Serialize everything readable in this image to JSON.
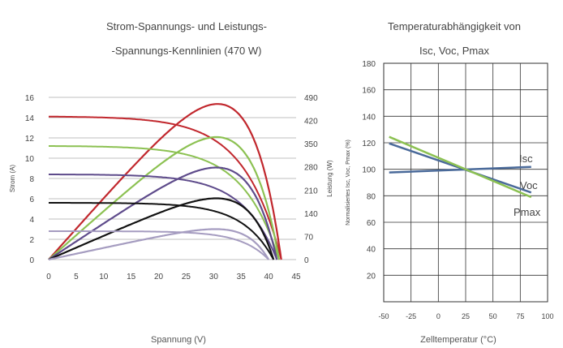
{
  "chart_data": [
    {
      "type": "line",
      "title_line1": "Strom-Spannungs- und Leistungs-",
      "title_line2": "-Spannungs-Kennlinien (470 W)",
      "xlabel": "Spannung (V)",
      "ylabel_left": "Strom (A)",
      "ylabel_right": "Leistung (W)",
      "xlim": [
        0,
        45
      ],
      "ylim_left": [
        0,
        16
      ],
      "ylim_right": [
        0,
        490
      ],
      "x_ticks": [
        "0",
        "5",
        "10",
        "15",
        "20",
        "25",
        "30",
        "35",
        "40",
        "45"
      ],
      "y_left_ticks": [
        "0",
        "2",
        "4",
        "6",
        "8",
        "10",
        "12",
        "14",
        "16"
      ],
      "y_right_ticks": [
        "0",
        "70",
        "140",
        "210",
        "280",
        "350",
        "420",
        "490"
      ],
      "grid": true,
      "series": [
        {
          "color": "#c1272d",
          "isc": 14.1,
          "voc": 42.3,
          "vmp": 35.2,
          "pmax": 470
        },
        {
          "color": "#8cc152",
          "isc": 11.2,
          "voc": 41.9,
          "vmp": 35.0,
          "pmax": 370
        },
        {
          "color": "#5e4b8b",
          "isc": 8.4,
          "voc": 41.5,
          "vmp": 35.0,
          "pmax": 278
        },
        {
          "color": "#111111",
          "isc": 5.6,
          "voc": 40.9,
          "vmp": 35.0,
          "pmax": 185
        },
        {
          "color": "#a59cc0",
          "isc": 2.8,
          "voc": 40.0,
          "vmp": 34.8,
          "pmax": 92
        }
      ]
    },
    {
      "type": "line",
      "title_line1": "Temperaturabhängigkeit von",
      "title_line2": "Isc, Voc, Pmax",
      "xlabel": "Zelltemperatur (°C)",
      "ylabel": "Normalisiertes Isc, Voc, Pmax (%)",
      "xlim": [
        -50,
        100
      ],
      "ylim": [
        0,
        180
      ],
      "x_ticks": [
        "-50",
        "-25",
        "0",
        "25",
        "50",
        "75",
        "100"
      ],
      "y_ticks": [
        "20",
        "40",
        "60",
        "80",
        "100",
        "120",
        "140",
        "160",
        "180"
      ],
      "grid": true,
      "series": [
        {
          "name": "Isc",
          "color": "#4a6a9a",
          "x": [
            -45,
            85
          ],
          "y": [
            97.6,
            101.8
          ]
        },
        {
          "name": "Voc",
          "color": "#4a6a9a",
          "x": [
            -45,
            85
          ],
          "y": [
            119.5,
            82.5
          ]
        },
        {
          "name": "Pmax",
          "color": "#8cc152",
          "x": [
            -45,
            85
          ],
          "y": [
            124.5,
            79.0
          ]
        }
      ]
    }
  ]
}
